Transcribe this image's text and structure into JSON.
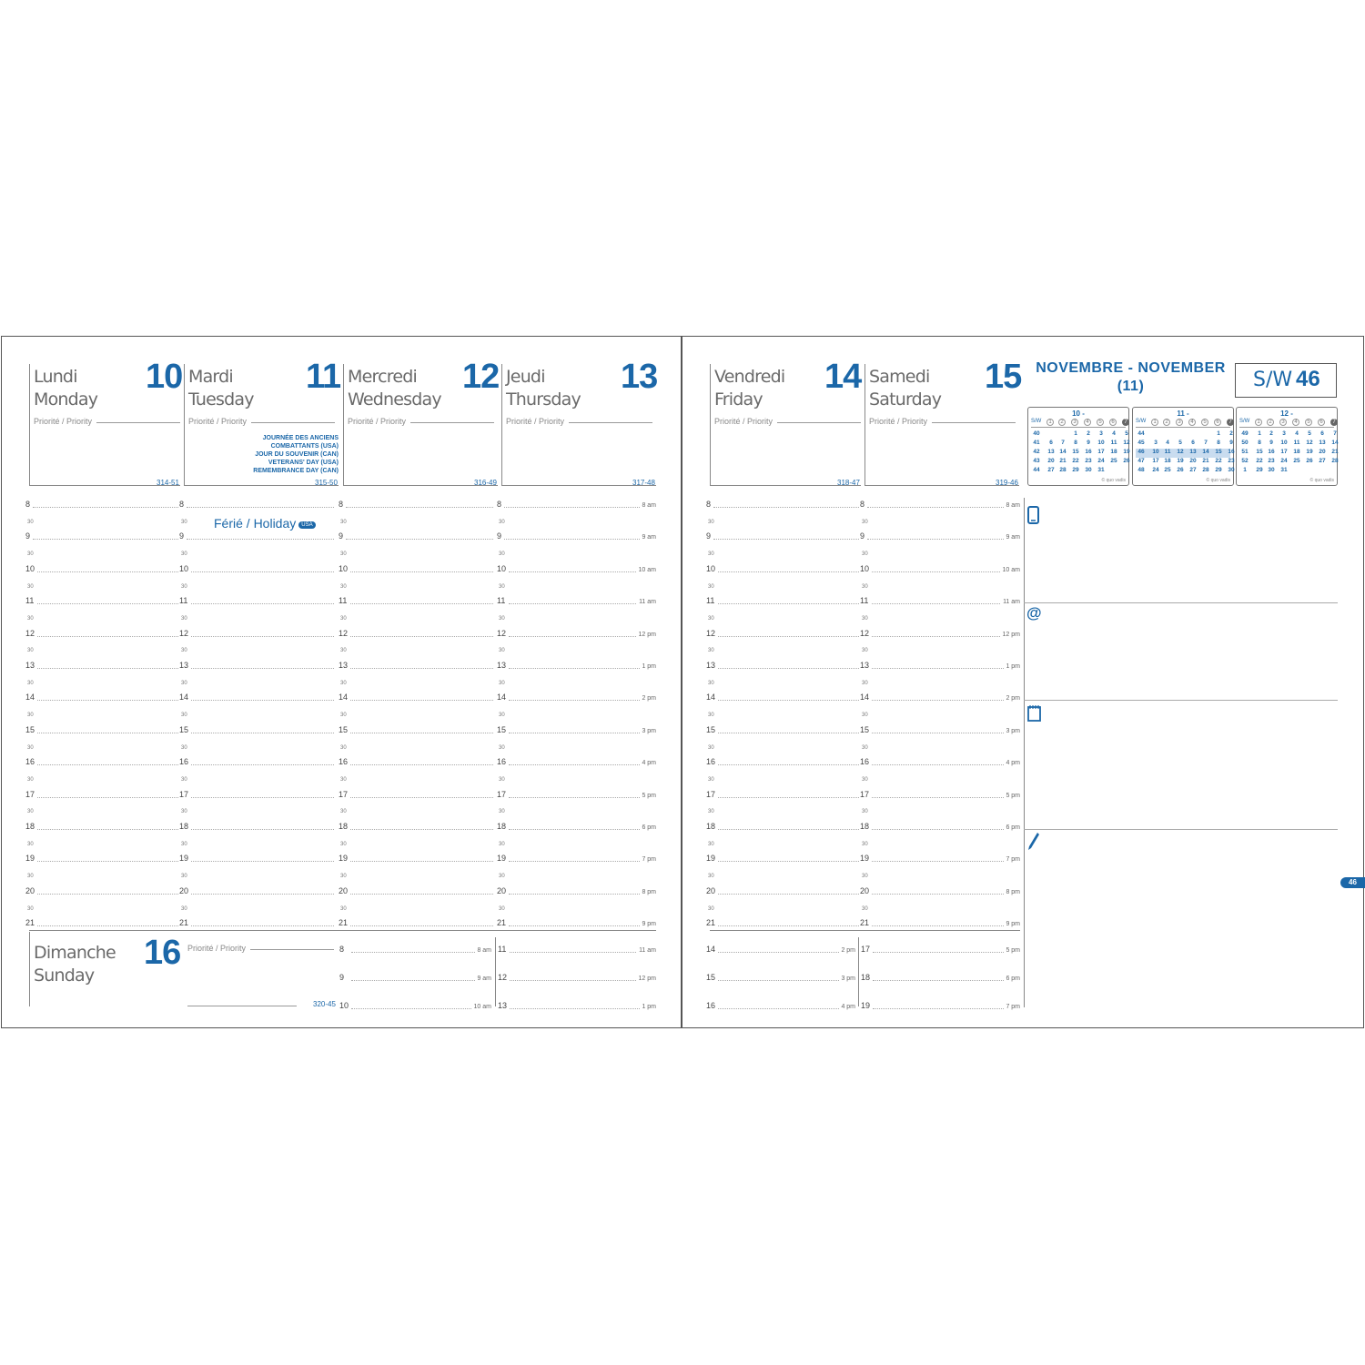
{
  "days": [
    {
      "fr": "Lundi",
      "en": "Monday",
      "num": "10",
      "code": "314-51"
    },
    {
      "fr": "Mardi",
      "en": "Tuesday",
      "num": "11",
      "code": "315-50"
    },
    {
      "fr": "Mercredi",
      "en": "Wednesday",
      "num": "12",
      "code": "316-49"
    },
    {
      "fr": "Jeudi",
      "en": "Thursday",
      "num": "13",
      "code": "317-48"
    },
    {
      "fr": "Vendredi",
      "en": "Friday",
      "num": "14",
      "code": "318-47"
    },
    {
      "fr": "Samedi",
      "en": "Saturday",
      "num": "15",
      "code": "319-46"
    },
    {
      "fr": "Dimanche",
      "en": "Sunday",
      "num": "16",
      "code": "320-45"
    }
  ],
  "priority_label": "Priorité / Priority",
  "holidays": [
    "JOURNÉE DES ANCIENS",
    "COMBATTANTS (USA)",
    "JOUR DU SOUVENIR (CAN)",
    "VETERANS' DAY (USA)",
    "REMEMBRANCE DAY (CAN)"
  ],
  "ferie": {
    "label": "Férié / Holiday",
    "badge": "USA"
  },
  "hours": [
    "8",
    "9",
    "10",
    "11",
    "12",
    "13",
    "14",
    "15",
    "16",
    "17",
    "18",
    "19",
    "20",
    "21"
  ],
  "ampm": [
    "8 am",
    "9 am",
    "10 am",
    "11 am",
    "12 pm",
    "1 pm",
    "2 pm",
    "3 pm",
    "4 pm",
    "5 pm",
    "6 pm",
    "7 pm",
    "8 pm",
    "9 pm"
  ],
  "half_label": "30",
  "sunday_slots": {
    "left": [
      {
        "h": "8",
        "ap": "8 am"
      },
      {
        "h": "9",
        "ap": "9 am"
      },
      {
        "h": "10",
        "ap": "10 am"
      }
    ],
    "right": [
      {
        "h": "11",
        "ap": "11 am"
      },
      {
        "h": "12",
        "ap": "12 pm"
      },
      {
        "h": "13",
        "ap": "1 pm"
      }
    ]
  },
  "weekend_extra": {
    "left": [
      {
        "h": "14",
        "ap": "2 pm"
      },
      {
        "h": "15",
        "ap": "3 pm"
      },
      {
        "h": "16",
        "ap": "4 pm"
      }
    ],
    "right": [
      {
        "h": "17",
        "ap": "5 pm"
      },
      {
        "h": "18",
        "ap": "6 pm"
      },
      {
        "h": "19",
        "ap": "7 pm"
      }
    ]
  },
  "month_title": "NOVEMBRE - NOVEMBER",
  "month_sub": "(11)",
  "week_box": {
    "label": "S/W",
    "value": "46"
  },
  "mini_header": {
    "sw": "S/W",
    "days": [
      "1",
      "2",
      "3",
      "4",
      "5",
      "6",
      "7"
    ]
  },
  "mini_calendars": [
    {
      "title": "10 -",
      "weeks": [
        [
          "40",
          "",
          "",
          "1",
          "2",
          "3",
          "4",
          "5"
        ],
        [
          "41",
          "6",
          "7",
          "8",
          "9",
          "10",
          "11",
          "12"
        ],
        [
          "42",
          "13",
          "14",
          "15",
          "16",
          "17",
          "18",
          "19"
        ],
        [
          "43",
          "20",
          "21",
          "22",
          "23",
          "24",
          "25",
          "26"
        ],
        [
          "44",
          "27",
          "28",
          "29",
          "30",
          "31",
          "",
          ""
        ]
      ],
      "current": -1
    },
    {
      "title": "11 -",
      "weeks": [
        [
          "44",
          "",
          "",
          "",
          "",
          "",
          "1",
          "2"
        ],
        [
          "45",
          "3",
          "4",
          "5",
          "6",
          "7",
          "8",
          "9"
        ],
        [
          "46",
          "10",
          "11",
          "12",
          "13",
          "14",
          "15",
          "16"
        ],
        [
          "47",
          "17",
          "18",
          "19",
          "20",
          "21",
          "22",
          "23"
        ],
        [
          "48",
          "24",
          "25",
          "26",
          "27",
          "28",
          "29",
          "30"
        ]
      ],
      "current": 2
    },
    {
      "title": "12 -",
      "weeks": [
        [
          "49",
          "1",
          "2",
          "3",
          "4",
          "5",
          "6",
          "7"
        ],
        [
          "50",
          "8",
          "9",
          "10",
          "11",
          "12",
          "13",
          "14"
        ],
        [
          "51",
          "15",
          "16",
          "17",
          "18",
          "19",
          "20",
          "21"
        ],
        [
          "52",
          "22",
          "23",
          "24",
          "25",
          "26",
          "27",
          "28"
        ],
        [
          "1",
          "29",
          "30",
          "31",
          "",
          "",
          "",
          ""
        ]
      ],
      "current": -1
    }
  ],
  "copyright": "© quo vadis",
  "notes_icons": [
    "phone-icon",
    "at-icon",
    "notepad-icon",
    "pencil-icon"
  ],
  "at_symbol": "@",
  "page_tab": "46"
}
